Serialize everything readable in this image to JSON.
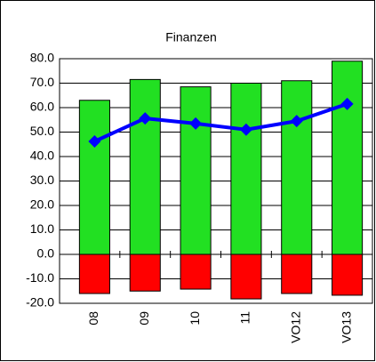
{
  "chart_data": {
    "type": "bar",
    "title": "Finanzen",
    "categories": [
      "08",
      "09",
      "10",
      "11",
      "VO12",
      "VO13"
    ],
    "series": [
      {
        "type": "bar",
        "color": "#22e022",
        "values": [
          63,
          71.5,
          68.5,
          70,
          71,
          79
        ]
      },
      {
        "type": "bar",
        "color": "#ff0000",
        "values": [
          -16,
          -15,
          -14.2,
          -18.2,
          -16,
          -16.7
        ]
      },
      {
        "type": "line",
        "color": "#0000ff",
        "values": [
          46.2,
          55.6,
          53.5,
          51,
          54.5,
          61.5
        ]
      }
    ],
    "ylim": [
      -20,
      80
    ],
    "yticks": [
      {
        "value": -20,
        "label": "-20.0"
      },
      {
        "value": -10,
        "label": "-10.0"
      },
      {
        "value": 0,
        "label": "0.0"
      },
      {
        "value": 10,
        "label": "10.0"
      },
      {
        "value": 20,
        "label": "20.0"
      },
      {
        "value": 30,
        "label": "30.0"
      },
      {
        "value": 40,
        "label": "40.0"
      },
      {
        "value": 50,
        "label": "50.0"
      },
      {
        "value": 60,
        "label": "60.0"
      },
      {
        "value": 70,
        "label": "70.0"
      },
      {
        "value": 80,
        "label": "80.0"
      }
    ],
    "grid": true
  }
}
